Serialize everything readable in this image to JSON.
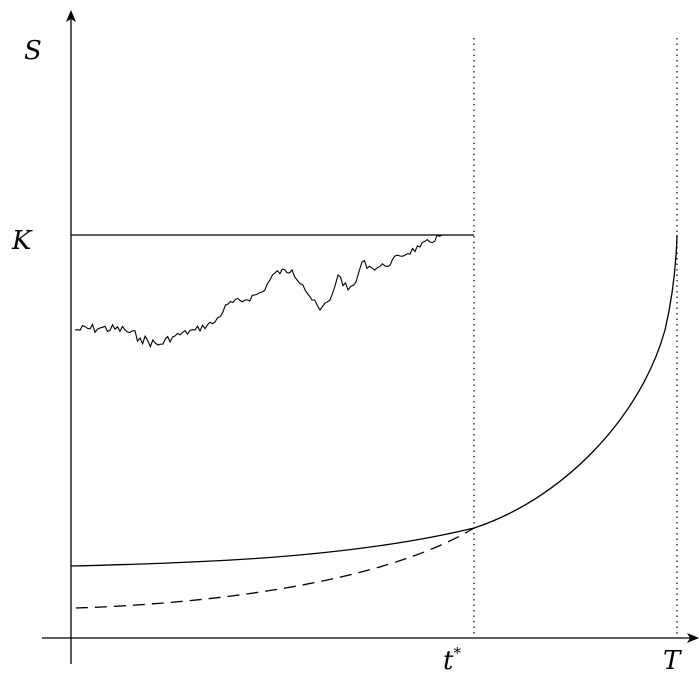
{
  "labels": {
    "y_axis": "S",
    "strike": "K",
    "t_star": "t",
    "t_star_sup": "*",
    "maturity": "T"
  },
  "colors": {
    "ink": "#000000",
    "background": "#ffffff"
  }
}
